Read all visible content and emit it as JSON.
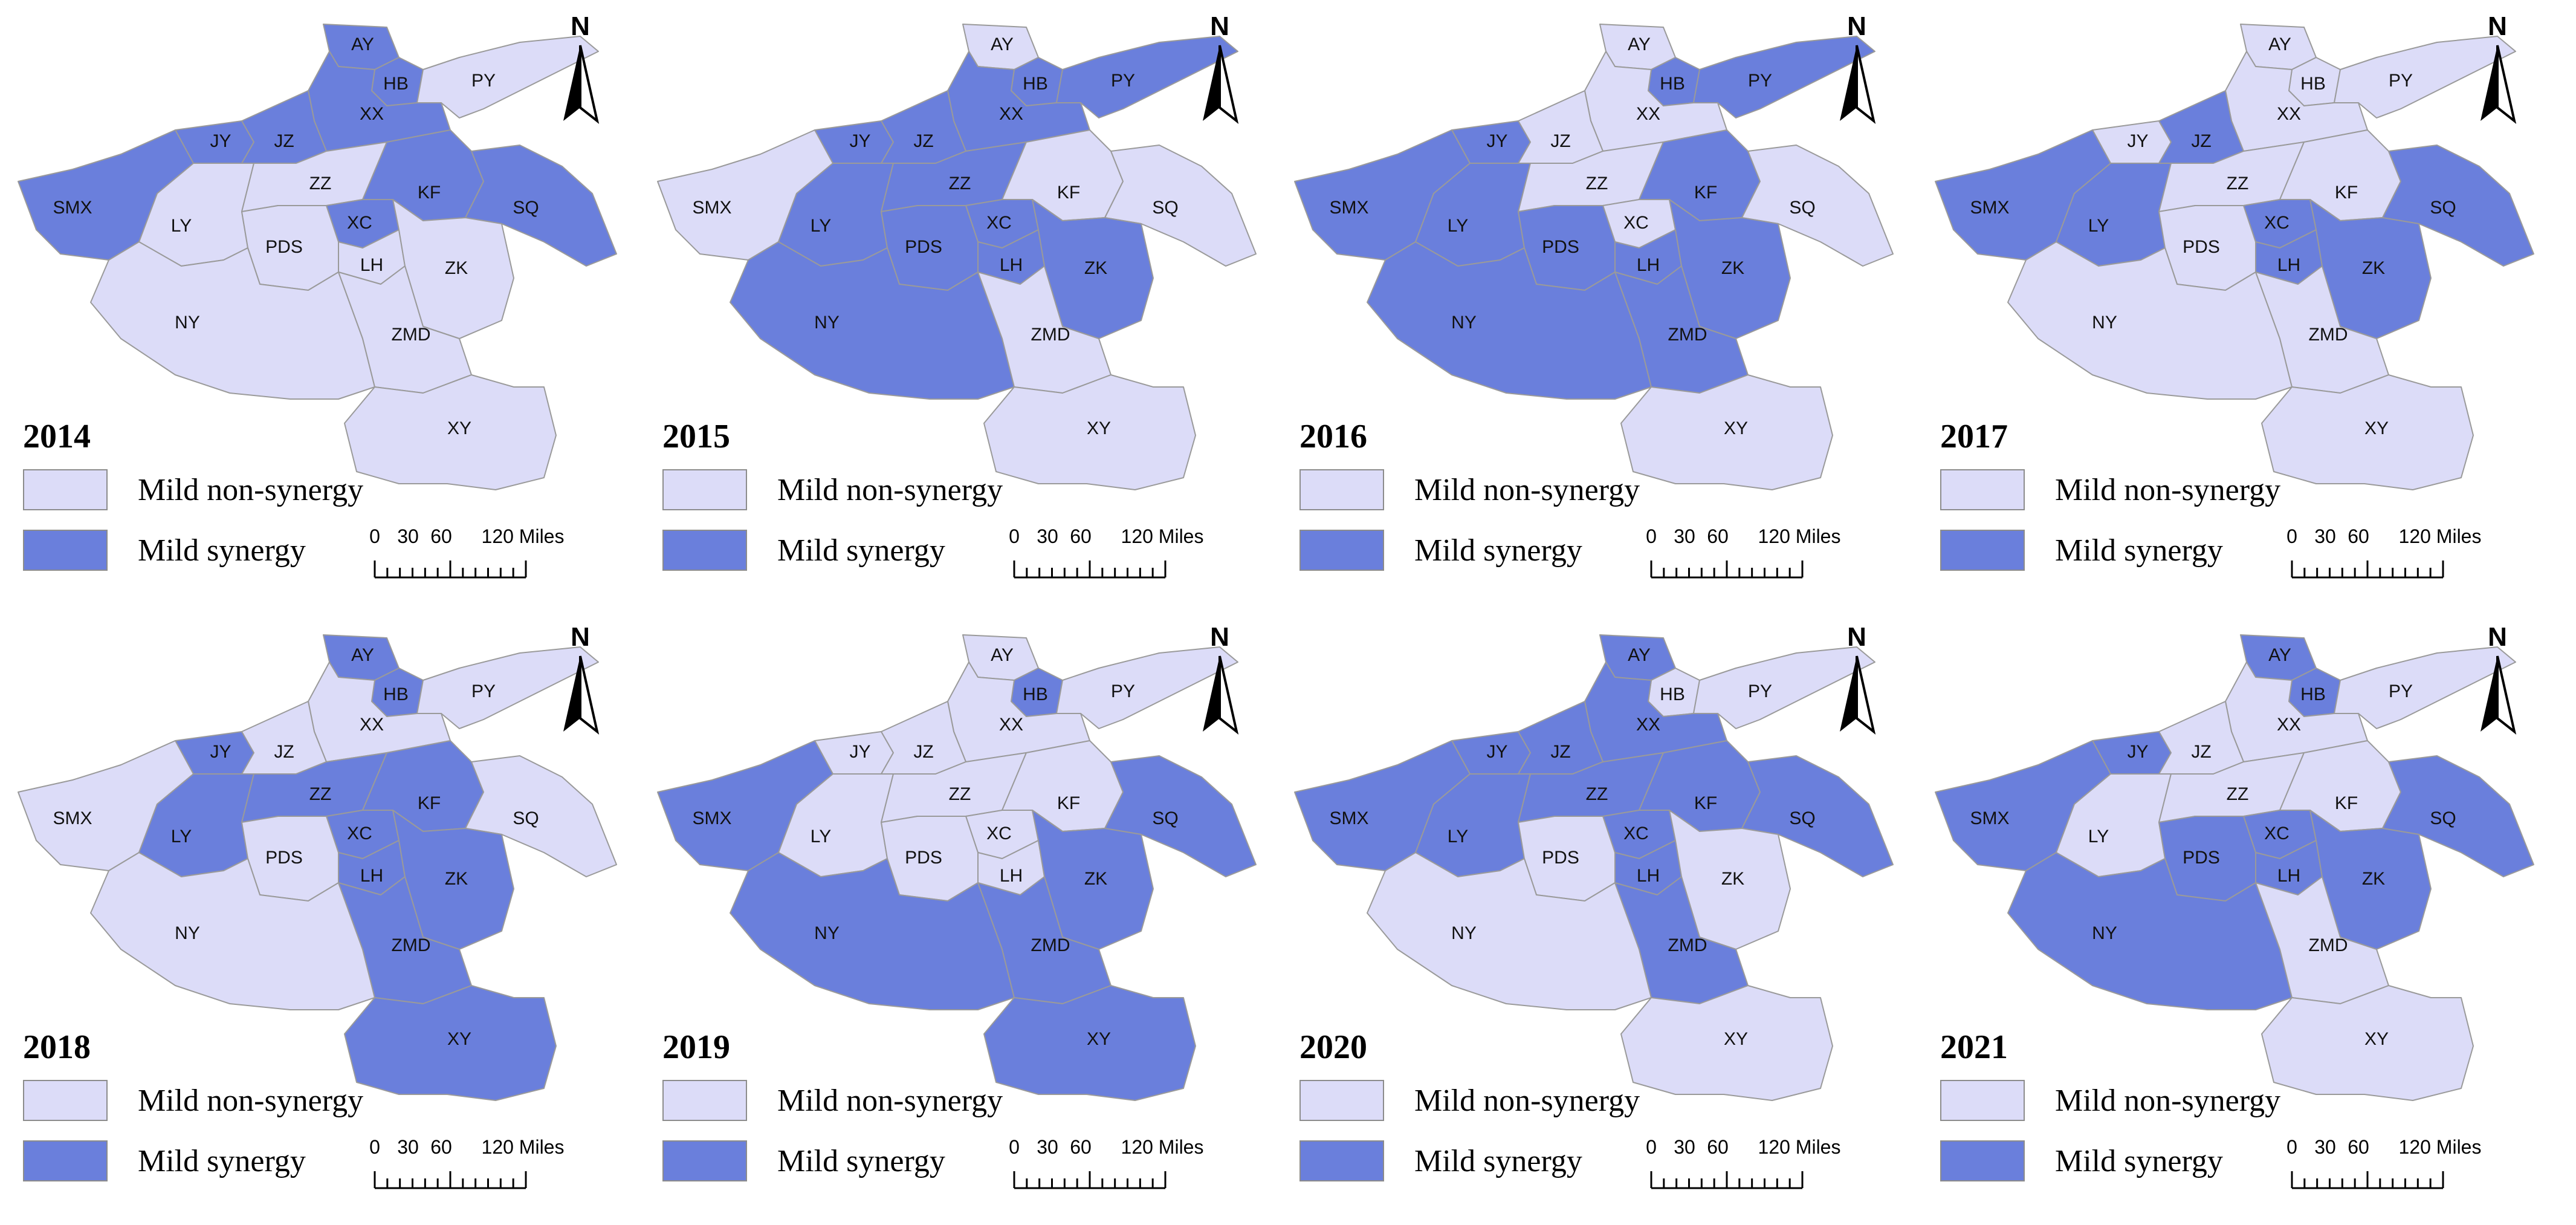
{
  "legend": {
    "non_synergy_label": "Mild non-synergy",
    "synergy_label": "Mild synergy"
  },
  "colors": {
    "non_synergy": "#dcdcf8",
    "synergy": "#6a7fdc",
    "border": "#9a9a9a"
  },
  "north_label": "N",
  "scale_labels": [
    "0",
    "30",
    "60",
    "120 Miles"
  ],
  "panels": [
    {
      "year": "2014",
      "synergy": [
        "SMX",
        "JY",
        "JZ",
        "XX",
        "AY",
        "HB",
        "KF",
        "SQ",
        "XC"
      ]
    },
    {
      "year": "2015",
      "synergy": [
        "LY",
        "JY",
        "JZ",
        "XX",
        "HB",
        "PY",
        "ZZ",
        "PDS",
        "XC",
        "LH",
        "ZK",
        "NY"
      ]
    },
    {
      "year": "2016",
      "synergy": [
        "SMX",
        "LY",
        "JY",
        "NY",
        "PDS",
        "LH",
        "ZK",
        "ZMD",
        "KF",
        "HB",
        "PY"
      ]
    },
    {
      "year": "2017",
      "synergy": [
        "SMX",
        "LY",
        "JZ",
        "XC",
        "LH",
        "ZK",
        "SQ"
      ]
    },
    {
      "year": "2018",
      "synergy": [
        "LY",
        "JY",
        "AY",
        "HB",
        "ZZ",
        "KF",
        "XC",
        "LH",
        "ZK",
        "ZMD",
        "XY"
      ]
    },
    {
      "year": "2019",
      "synergy": [
        "SMX",
        "NY",
        "ZMD",
        "ZK",
        "SQ",
        "XY",
        "HB"
      ]
    },
    {
      "year": "2020",
      "synergy": [
        "SMX",
        "LY",
        "JY",
        "JZ",
        "XX",
        "AY",
        "ZZ",
        "KF",
        "SQ",
        "XC",
        "LH",
        "ZMD"
      ]
    },
    {
      "year": "2021",
      "synergy": [
        "SMX",
        "NY",
        "PDS",
        "XC",
        "LH",
        "ZK",
        "SQ",
        "AY",
        "HB",
        "JY"
      ]
    }
  ],
  "regions": [
    "AY",
    "HB",
    "PY",
    "XX",
    "JY",
    "JZ",
    "SMX",
    "LY",
    "ZZ",
    "KF",
    "SQ",
    "XC",
    "PDS",
    "LH",
    "ZK",
    "NY",
    "ZMD",
    "XY"
  ]
}
